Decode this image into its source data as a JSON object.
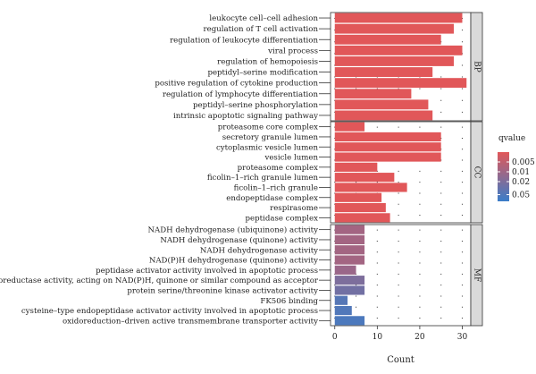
{
  "chart_data": {
    "type": "bar",
    "orientation": "horizontal",
    "xlabel": "Count",
    "x_ticks": [
      0,
      10,
      20,
      30
    ],
    "xlim": [
      -1,
      32
    ],
    "grid": "dotted",
    "legend": {
      "title": "qvalue",
      "position": "right",
      "ticks": [
        0.005,
        0.01,
        0.02,
        0.05
      ],
      "tick_labels": [
        "0.005",
        "0.01",
        "0.02",
        "0.05"
      ],
      "scale": "log",
      "range": [
        0.0025,
        0.08
      ],
      "colors": [
        "#e15759",
        "#3a7dc9"
      ]
    },
    "panels": [
      {
        "name": "BP",
        "terms": [
          {
            "label": "leukocyte cell–cell adhesion",
            "count": 30,
            "qvalue": 0.0005
          },
          {
            "label": "regulation of T cell activation",
            "count": 28,
            "qvalue": 0.0005
          },
          {
            "label": "regulation of leukocyte differentiation",
            "count": 25,
            "qvalue": 0.0005
          },
          {
            "label": "viral process",
            "count": 30,
            "qvalue": 0.0005
          },
          {
            "label": "regulation of hemopoiesis",
            "count": 28,
            "qvalue": 0.0005
          },
          {
            "label": "peptidyl–serine modification",
            "count": 23,
            "qvalue": 0.0005
          },
          {
            "label": "positive regulation of cytokine production",
            "count": 31,
            "qvalue": 0.0005
          },
          {
            "label": "regulation of lymphocyte differentiation",
            "count": 18,
            "qvalue": 0.0005
          },
          {
            "label": "peptidyl–serine phosphorylation",
            "count": 22,
            "qvalue": 0.0005
          },
          {
            "label": "intrinsic apoptotic signaling pathway",
            "count": 23,
            "qvalue": 0.0005
          }
        ]
      },
      {
        "name": "CC",
        "terms": [
          {
            "label": "proteasome core complex",
            "count": 7,
            "qvalue": 0.0005
          },
          {
            "label": "secretory granule lumen",
            "count": 25,
            "qvalue": 0.0005
          },
          {
            "label": "cytoplasmic vesicle lumen",
            "count": 25,
            "qvalue": 0.0005
          },
          {
            "label": "vesicle lumen",
            "count": 25,
            "qvalue": 0.0005
          },
          {
            "label": "proteasome complex",
            "count": 10,
            "qvalue": 0.0005
          },
          {
            "label": "ficolin–1–rich granule lumen",
            "count": 14,
            "qvalue": 0.0005
          },
          {
            "label": "ficolin–1–rich granule",
            "count": 17,
            "qvalue": 0.0005
          },
          {
            "label": "endopeptidase complex",
            "count": 11,
            "qvalue": 0.0005
          },
          {
            "label": "respirasome",
            "count": 12,
            "qvalue": 0.0005
          },
          {
            "label": "peptidase complex",
            "count": 13,
            "qvalue": 0.0005
          }
        ]
      },
      {
        "name": "MF",
        "terms": [
          {
            "label": "NADH dehydrogenase (ubiquinone) activity",
            "count": 7,
            "qvalue": 0.009
          },
          {
            "label": "NADH dehydrogenase (quinone) activity",
            "count": 7,
            "qvalue": 0.009
          },
          {
            "label": "NADH dehydrogenase activity",
            "count": 7,
            "qvalue": 0.009
          },
          {
            "label": "NAD(P)H dehydrogenase (quinone) activity",
            "count": 7,
            "qvalue": 0.009
          },
          {
            "label": "peptidase activator activity involved in apoptotic process",
            "count": 5,
            "qvalue": 0.011
          },
          {
            "label": "oxidoreductase activity, acting on NAD(P)H, quinone or similar compound as acceptor",
            "count": 7,
            "qvalue": 0.02
          },
          {
            "label": "protein serine/threonine kinase activator activity",
            "count": 7,
            "qvalue": 0.025
          },
          {
            "label": "FK506 binding",
            "count": 3,
            "qvalue": 0.045
          },
          {
            "label": "cysteine–type endopeptidase activator activity involved in apoptotic process",
            "count": 4,
            "qvalue": 0.05
          },
          {
            "label": "oxidoreduction–driven active transmembrane transporter activity",
            "count": 7,
            "qvalue": 0.055
          }
        ]
      }
    ]
  }
}
